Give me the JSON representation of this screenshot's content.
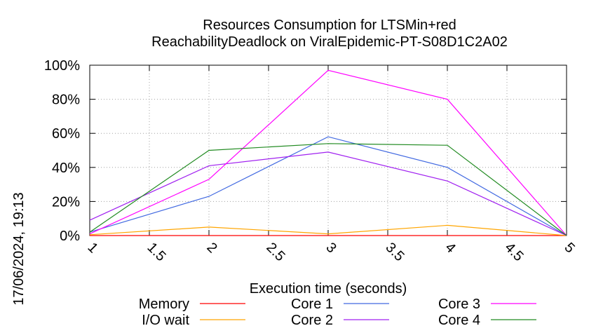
{
  "chart_data": {
    "type": "line",
    "title": "Resources Consumption for LTSMin+red",
    "subtitle": "ReachabilityDeadlock on ViralEpidemic-PT-S08D1C2A02",
    "xlabel": "Execution time (seconds)",
    "ylabel": "",
    "timestamp": "17/06/2024, 19:13",
    "xlim": [
      1,
      5
    ],
    "ylim": [
      0,
      100
    ],
    "x_ticks": [
      "1",
      "1.5",
      "2",
      "2.5",
      "3",
      "3.5",
      "4",
      "4.5",
      "5"
    ],
    "y_ticks": [
      "0%",
      "20%",
      "40%",
      "60%",
      "80%",
      "100%"
    ],
    "grid": true,
    "legend_position": "bottom",
    "x": [
      1,
      2,
      3,
      4,
      5
    ],
    "series": [
      {
        "name": "Memory",
        "color": "#ff0000",
        "values": [
          0,
          0,
          0,
          0,
          0
        ]
      },
      {
        "name": "I/O wait",
        "color": "#ffa500",
        "values": [
          0.5,
          5,
          1,
          6,
          0
        ]
      },
      {
        "name": "Core 1",
        "color": "#4169e1",
        "values": [
          2,
          23,
          58,
          40,
          0
        ]
      },
      {
        "name": "Core 2",
        "color": "#a020f0",
        "values": [
          9,
          41,
          49,
          32,
          0
        ]
      },
      {
        "name": "Core 3",
        "color": "#ff00ff",
        "values": [
          1,
          33,
          97,
          80,
          0
        ]
      },
      {
        "name": "Core 4",
        "color": "#228b22",
        "values": [
          2,
          50,
          54,
          53,
          0
        ]
      }
    ]
  }
}
